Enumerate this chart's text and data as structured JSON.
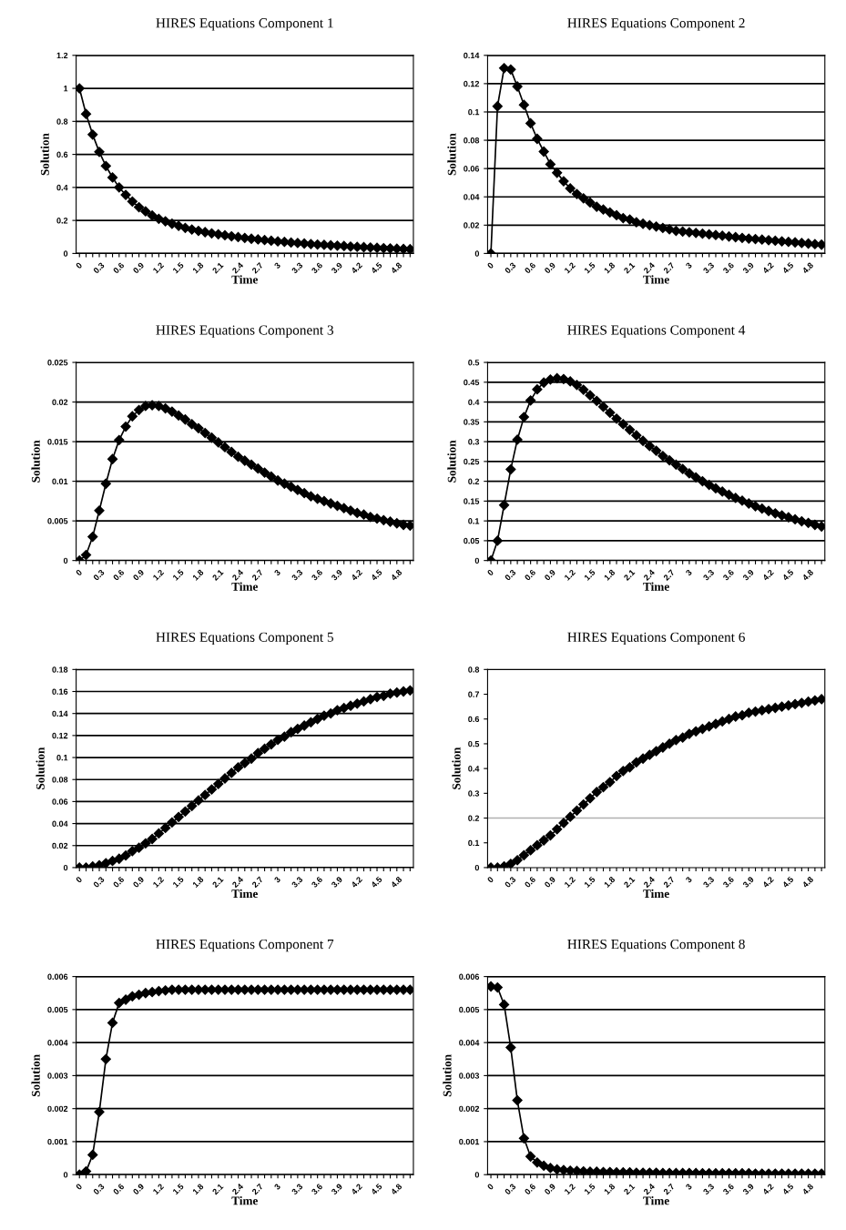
{
  "chart_data": [
    {
      "type": "line",
      "title": "HIRES Equations Component 1",
      "xlabel": "Time",
      "ylabel": "Solution",
      "grid": "y",
      "marker": "diamond",
      "ylim": [
        0,
        1.2
      ],
      "yticks": [
        0,
        0.2,
        0.4,
        0.6,
        0.8,
        1,
        1.2
      ],
      "categories": [
        "0",
        null,
        null,
        "0.3",
        null,
        null,
        "0.6",
        null,
        null,
        "0.9",
        null,
        null,
        "1.2",
        null,
        null,
        "1.5",
        null,
        null,
        "1.8",
        null,
        null,
        "2.1",
        null,
        null,
        "2.4",
        null,
        null,
        "2.7",
        null,
        null,
        "3",
        null,
        null,
        "3.3",
        null,
        null,
        "3.6",
        null,
        null,
        "3.9",
        null,
        null,
        "4.2",
        null,
        null,
        "4.5",
        null,
        null,
        "4.8",
        null,
        null
      ],
      "series": [
        {
          "color": "#000000",
          "values": [
            1.0,
            0.845,
            0.72,
            0.615,
            0.53,
            0.46,
            0.4,
            0.355,
            0.315,
            0.28,
            0.255,
            0.23,
            0.21,
            0.195,
            0.18,
            0.167,
            0.155,
            0.145,
            0.137,
            0.129,
            0.122,
            0.116,
            0.11,
            0.104,
            0.099,
            0.094,
            0.089,
            0.085,
            0.081,
            0.077,
            0.073,
            0.07,
            0.066,
            0.063,
            0.06,
            0.057,
            0.054,
            0.052,
            0.049,
            0.047,
            0.045,
            0.042,
            0.04,
            0.038,
            0.036,
            0.034,
            0.032,
            0.031,
            0.029,
            0.027,
            0.026
          ]
        }
      ]
    },
    {
      "type": "line",
      "title": "HIRES Equations Component 2",
      "xlabel": "Time",
      "ylabel": "Solution",
      "grid": "y",
      "marker": "diamond",
      "ylim": [
        0,
        0.14
      ],
      "yticks": [
        0,
        0.02,
        0.04,
        0.06,
        0.08,
        0.1,
        0.12,
        0.14
      ],
      "categories": [
        "0",
        null,
        null,
        "0.3",
        null,
        null,
        "0.6",
        null,
        null,
        "0.9",
        null,
        null,
        "1.2",
        null,
        null,
        "1.5",
        null,
        null,
        "1.8",
        null,
        null,
        "2.1",
        null,
        null,
        "2.4",
        null,
        null,
        "2.7",
        null,
        null,
        "3",
        null,
        null,
        "3.3",
        null,
        null,
        "3.6",
        null,
        null,
        "3.9",
        null,
        null,
        "4.2",
        null,
        null,
        "4.5",
        null,
        null,
        "4.8",
        null,
        null
      ],
      "series": [
        {
          "color": "#000000",
          "values": [
            0,
            0.104,
            0.131,
            0.13,
            0.118,
            0.105,
            0.092,
            0.081,
            0.072,
            0.063,
            0.057,
            0.051,
            0.046,
            0.042,
            0.039,
            0.036,
            0.033,
            0.031,
            0.029,
            0.027,
            0.025,
            0.024,
            0.022,
            0.021,
            0.02,
            0.019,
            0.018,
            0.017,
            0.016,
            0.0155,
            0.015,
            0.0145,
            0.014,
            0.0135,
            0.013,
            0.0125,
            0.012,
            0.0115,
            0.011,
            0.0105,
            0.0102,
            0.0098,
            0.0094,
            0.009,
            0.0086,
            0.0082,
            0.0078,
            0.0074,
            0.007,
            0.0066,
            0.0062
          ]
        }
      ]
    },
    {
      "type": "line",
      "title": "HIRES Equations Component 3",
      "xlabel": "Time",
      "ylabel": "Solution",
      "grid": "y",
      "marker": "diamond",
      "ylim": [
        0,
        0.025
      ],
      "yticks": [
        0,
        0.005,
        0.01,
        0.015,
        0.02,
        0.025
      ],
      "categories": [
        "0",
        null,
        null,
        "0.3",
        null,
        null,
        "0.6",
        null,
        null,
        "0.9",
        null,
        null,
        "1.2",
        null,
        null,
        "1.5",
        null,
        null,
        "1.8",
        null,
        null,
        "2.1",
        null,
        null,
        "2.4",
        null,
        null,
        "2.7",
        null,
        null,
        "3",
        null,
        null,
        "3.3",
        null,
        null,
        "3.6",
        null,
        null,
        "3.9",
        null,
        null,
        "4.2",
        null,
        null,
        "4.5",
        null,
        null,
        "4.8",
        null,
        null
      ],
      "series": [
        {
          "color": "#000000",
          "values": [
            0,
            0.0007,
            0.003,
            0.0063,
            0.0097,
            0.0128,
            0.0152,
            0.0169,
            0.0182,
            0.019,
            0.0195,
            0.0196,
            0.0195,
            0.0192,
            0.0188,
            0.0183,
            0.0178,
            0.0172,
            0.0167,
            0.0161,
            0.0155,
            0.0149,
            0.0143,
            0.0137,
            0.0131,
            0.0126,
            0.0121,
            0.0116,
            0.0111,
            0.0106,
            0.0101,
            0.0097,
            0.0093,
            0.0089,
            0.0085,
            0.0081,
            0.0078,
            0.0075,
            0.0072,
            0.0069,
            0.0066,
            0.0063,
            0.006,
            0.0058,
            0.0055,
            0.0053,
            0.0051,
            0.0049,
            0.0047,
            0.0045,
            0.0044
          ]
        }
      ]
    },
    {
      "type": "line",
      "title": "HIRES Equations Component 4",
      "xlabel": "Time",
      "ylabel": "Solution",
      "grid": "y",
      "marker": "diamond",
      "ylim": [
        0,
        0.5
      ],
      "yticks": [
        0,
        0.05,
        0.1,
        0.15,
        0.2,
        0.25,
        0.3,
        0.35,
        0.4,
        0.45,
        0.5
      ],
      "categories": [
        "0",
        null,
        null,
        "0.3",
        null,
        null,
        "0.6",
        null,
        null,
        "0.9",
        null,
        null,
        "1.2",
        null,
        null,
        "1.5",
        null,
        null,
        "1.8",
        null,
        null,
        "2.1",
        null,
        null,
        "2.4",
        null,
        null,
        "2.7",
        null,
        null,
        "3",
        null,
        null,
        "3.3",
        null,
        null,
        "3.6",
        null,
        null,
        "3.9",
        null,
        null,
        "4.2",
        null,
        null,
        "4.5",
        null,
        null,
        "4.8",
        null,
        null
      ],
      "series": [
        {
          "color": "#000000",
          "values": [
            0,
            0.05,
            0.14,
            0.23,
            0.305,
            0.362,
            0.404,
            0.432,
            0.449,
            0.457,
            0.46,
            0.458,
            0.452,
            0.443,
            0.431,
            0.417,
            0.403,
            0.388,
            0.373,
            0.358,
            0.344,
            0.33,
            0.316,
            0.302,
            0.289,
            0.277,
            0.264,
            0.253,
            0.242,
            0.231,
            0.22,
            0.21,
            0.2,
            0.191,
            0.182,
            0.174,
            0.166,
            0.158,
            0.151,
            0.144,
            0.137,
            0.131,
            0.125,
            0.119,
            0.114,
            0.109,
            0.104,
            0.099,
            0.095,
            0.09,
            0.086
          ]
        }
      ]
    },
    {
      "type": "line",
      "title": "HIRES Equations Component 5",
      "xlabel": "Time",
      "ylabel": "Solution",
      "grid": "y",
      "marker": "diamond",
      "ylim": [
        0,
        0.18
      ],
      "yticks": [
        0,
        0.02,
        0.04,
        0.06,
        0.08,
        0.1,
        0.12,
        0.14,
        0.16,
        0.18
      ],
      "categories": [
        "0",
        null,
        null,
        "0.3",
        null,
        null,
        "0.6",
        null,
        null,
        "0.9",
        null,
        null,
        "1.2",
        null,
        null,
        "1.5",
        null,
        null,
        "1.8",
        null,
        null,
        "2.1",
        null,
        null,
        "2.4",
        null,
        null,
        "2.7",
        null,
        null,
        "3",
        null,
        null,
        "3.3",
        null,
        null,
        "3.6",
        null,
        null,
        "3.9",
        null,
        null,
        "4.2",
        null,
        null,
        "4.5",
        null,
        null,
        "4.8",
        null,
        null
      ],
      "series": [
        {
          "color": "#000000",
          "values": [
            0,
            0,
            0.001,
            0.002,
            0.004,
            0.006,
            0.008,
            0.011,
            0.015,
            0.018,
            0.022,
            0.026,
            0.031,
            0.036,
            0.041,
            0.046,
            0.051,
            0.056,
            0.061,
            0.066,
            0.071,
            0.076,
            0.081,
            0.086,
            0.091,
            0.095,
            0.099,
            0.104,
            0.108,
            0.112,
            0.116,
            0.119,
            0.123,
            0.126,
            0.129,
            0.132,
            0.135,
            0.138,
            0.14,
            0.143,
            0.145,
            0.147,
            0.149,
            0.151,
            0.153,
            0.155,
            0.156,
            0.158,
            0.159,
            0.16,
            0.161
          ]
        }
      ]
    },
    {
      "type": "line",
      "title": "HIRES Equations Component 6",
      "xlabel": "Time",
      "ylabel": "Solution",
      "marker": "diamond",
      "ylim": [
        0,
        0.8
      ],
      "yticks": [
        0,
        0.1,
        0.2,
        0.3,
        0.4,
        0.5,
        0.6,
        0.7,
        0.8
      ],
      "ref_lines": [
        {
          "axis": "y",
          "value": 0.2,
          "color": "#b0b0b0"
        }
      ],
      "categories": [
        "0",
        null,
        null,
        "0.3",
        null,
        null,
        "0.6",
        null,
        null,
        "0.9",
        null,
        null,
        "1.2",
        null,
        null,
        "1.5",
        null,
        null,
        "1.8",
        null,
        null,
        "2.1",
        null,
        null,
        "2.4",
        null,
        null,
        "2.7",
        null,
        null,
        "3",
        null,
        null,
        "3.3",
        null,
        null,
        "3.6",
        null,
        null,
        "3.9",
        null,
        null,
        "4.2",
        null,
        null,
        "4.5",
        null,
        null,
        "4.8",
        null,
        null
      ],
      "series": [
        {
          "color": "#000000",
          "values": [
            0,
            0,
            0.005,
            0.015,
            0.03,
            0.05,
            0.07,
            0.09,
            0.11,
            0.13,
            0.155,
            0.18,
            0.205,
            0.23,
            0.255,
            0.28,
            0.305,
            0.325,
            0.345,
            0.37,
            0.39,
            0.405,
            0.425,
            0.44,
            0.455,
            0.47,
            0.485,
            0.5,
            0.515,
            0.525,
            0.54,
            0.55,
            0.56,
            0.57,
            0.58,
            0.59,
            0.6,
            0.61,
            0.615,
            0.625,
            0.63,
            0.635,
            0.64,
            0.645,
            0.65,
            0.655,
            0.66,
            0.665,
            0.67,
            0.675,
            0.68
          ]
        }
      ]
    },
    {
      "type": "line",
      "title": "HIRES Equations Component 7",
      "xlabel": "Time",
      "ylabel": "Solution",
      "grid": "y",
      "marker": "diamond",
      "ylim": [
        0,
        0.006
      ],
      "yticks": [
        0,
        0.001,
        0.002,
        0.003,
        0.004,
        0.005,
        0.006
      ],
      "categories": [
        "0",
        null,
        null,
        "0.3",
        null,
        null,
        "0.6",
        null,
        null,
        "0.9",
        null,
        null,
        "1.2",
        null,
        null,
        "1.5",
        null,
        null,
        "1.8",
        null,
        null,
        "2.1",
        null,
        null,
        "2.4",
        null,
        null,
        "2.7",
        null,
        null,
        "3",
        null,
        null,
        "3.3",
        null,
        null,
        "3.6",
        null,
        null,
        "3.9",
        null,
        null,
        "4.2",
        null,
        null,
        "4.5",
        null,
        null,
        "4.8",
        null,
        null
      ],
      "series": [
        {
          "color": "#000000",
          "values": [
            0,
            0.0001,
            0.0006,
            0.0019,
            0.0035,
            0.0046,
            0.0052,
            0.0053,
            0.0054,
            0.00545,
            0.0055,
            0.00553,
            0.00556,
            0.00558,
            0.0056,
            0.0056,
            0.0056,
            0.0056,
            0.0056,
            0.0056,
            0.0056,
            0.0056,
            0.0056,
            0.0056,
            0.0056,
            0.0056,
            0.0056,
            0.0056,
            0.0056,
            0.0056,
            0.0056,
            0.0056,
            0.0056,
            0.0056,
            0.0056,
            0.0056,
            0.0056,
            0.0056,
            0.0056,
            0.0056,
            0.0056,
            0.0056,
            0.0056,
            0.0056,
            0.0056,
            0.0056,
            0.0056,
            0.0056,
            0.0056,
            0.0056,
            0.0056
          ]
        }
      ]
    },
    {
      "type": "line",
      "title": "HIRES Equations Component 8",
      "xlabel": "Time",
      "ylabel": "Solution",
      "grid": "y",
      "marker": "diamond",
      "ylim": [
        0,
        0.006
      ],
      "yticks": [
        0,
        0.001,
        0.002,
        0.003,
        0.004,
        0.005,
        0.006
      ],
      "categories": [
        "0",
        null,
        null,
        "0.3",
        null,
        null,
        "0.6",
        null,
        null,
        "0.9",
        null,
        null,
        "1.2",
        null,
        null,
        "1.5",
        null,
        null,
        "1.8",
        null,
        null,
        "2.1",
        null,
        null,
        "2.4",
        null,
        null,
        "2.7",
        null,
        null,
        "3",
        null,
        null,
        "3.3",
        null,
        null,
        "3.6",
        null,
        null,
        "3.9",
        null,
        null,
        "4.2",
        null,
        null,
        "4.5",
        null,
        null,
        "4.8",
        null,
        null
      ],
      "series": [
        {
          "color": "#000000",
          "values": [
            0.0057,
            0.00567,
            0.00515,
            0.00385,
            0.00225,
            0.0011,
            0.00055,
            0.00037,
            0.00027,
            0.0002,
            0.00016,
            0.00014,
            0.00012,
            0.00011,
            0.0001,
            9e-05,
            9e-05,
            8e-05,
            8e-05,
            7e-05,
            7e-05,
            7e-05,
            6e-05,
            6e-05,
            6e-05,
            6e-05,
            5e-05,
            5e-05,
            5e-05,
            5e-05,
            5e-05,
            5e-05,
            4e-05,
            4e-05,
            4e-05,
            4e-05,
            4e-05,
            4e-05,
            4e-05,
            4e-05,
            3e-05,
            3e-05,
            3e-05,
            3e-05,
            3e-05,
            3e-05,
            3e-05,
            3e-05,
            3e-05,
            3e-05,
            3e-05
          ]
        }
      ]
    }
  ]
}
